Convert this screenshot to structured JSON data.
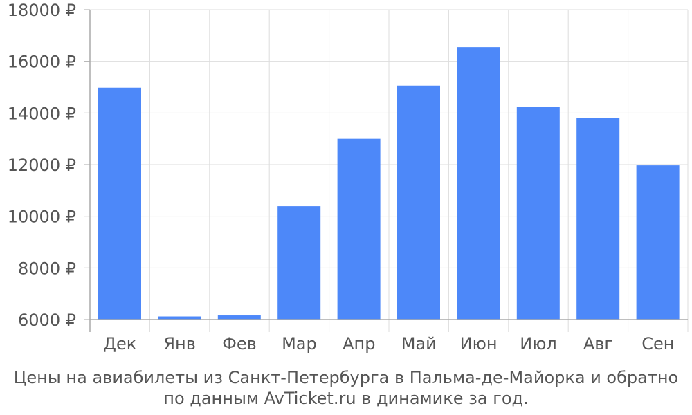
{
  "chart_data": {
    "type": "bar",
    "title": "",
    "xlabel": "",
    "ylabel": "",
    "categories": [
      "Дек",
      "Янв",
      "Фев",
      "Мар",
      "Апр",
      "Май",
      "Июн",
      "Июл",
      "Авг",
      "Сен"
    ],
    "values": [
      14980,
      6120,
      6160,
      10390,
      13000,
      15060,
      16550,
      14230,
      13810,
      11970
    ],
    "ylim": [
      6000,
      18000
    ],
    "yticks": [
      6000,
      8000,
      10000,
      12000,
      14000,
      16000,
      18000
    ],
    "ytick_suffix": " ₽",
    "ytick_labels": [
      "6000 ₽",
      "8000 ₽",
      "10000 ₽",
      "12000 ₽",
      "14000 ₽",
      "16000 ₽",
      "18000 ₽"
    ],
    "grid": true,
    "bar_color": "#4d88f9",
    "grid_color": "#dddddd",
    "axis_color": "#aaaaaa",
    "caption": [
      "Цены на авиабилеты из Санкт-Петербурга в Пальма-де-Майорка и обратно",
      "по данным AvTicket.ru в динамике за год."
    ]
  }
}
